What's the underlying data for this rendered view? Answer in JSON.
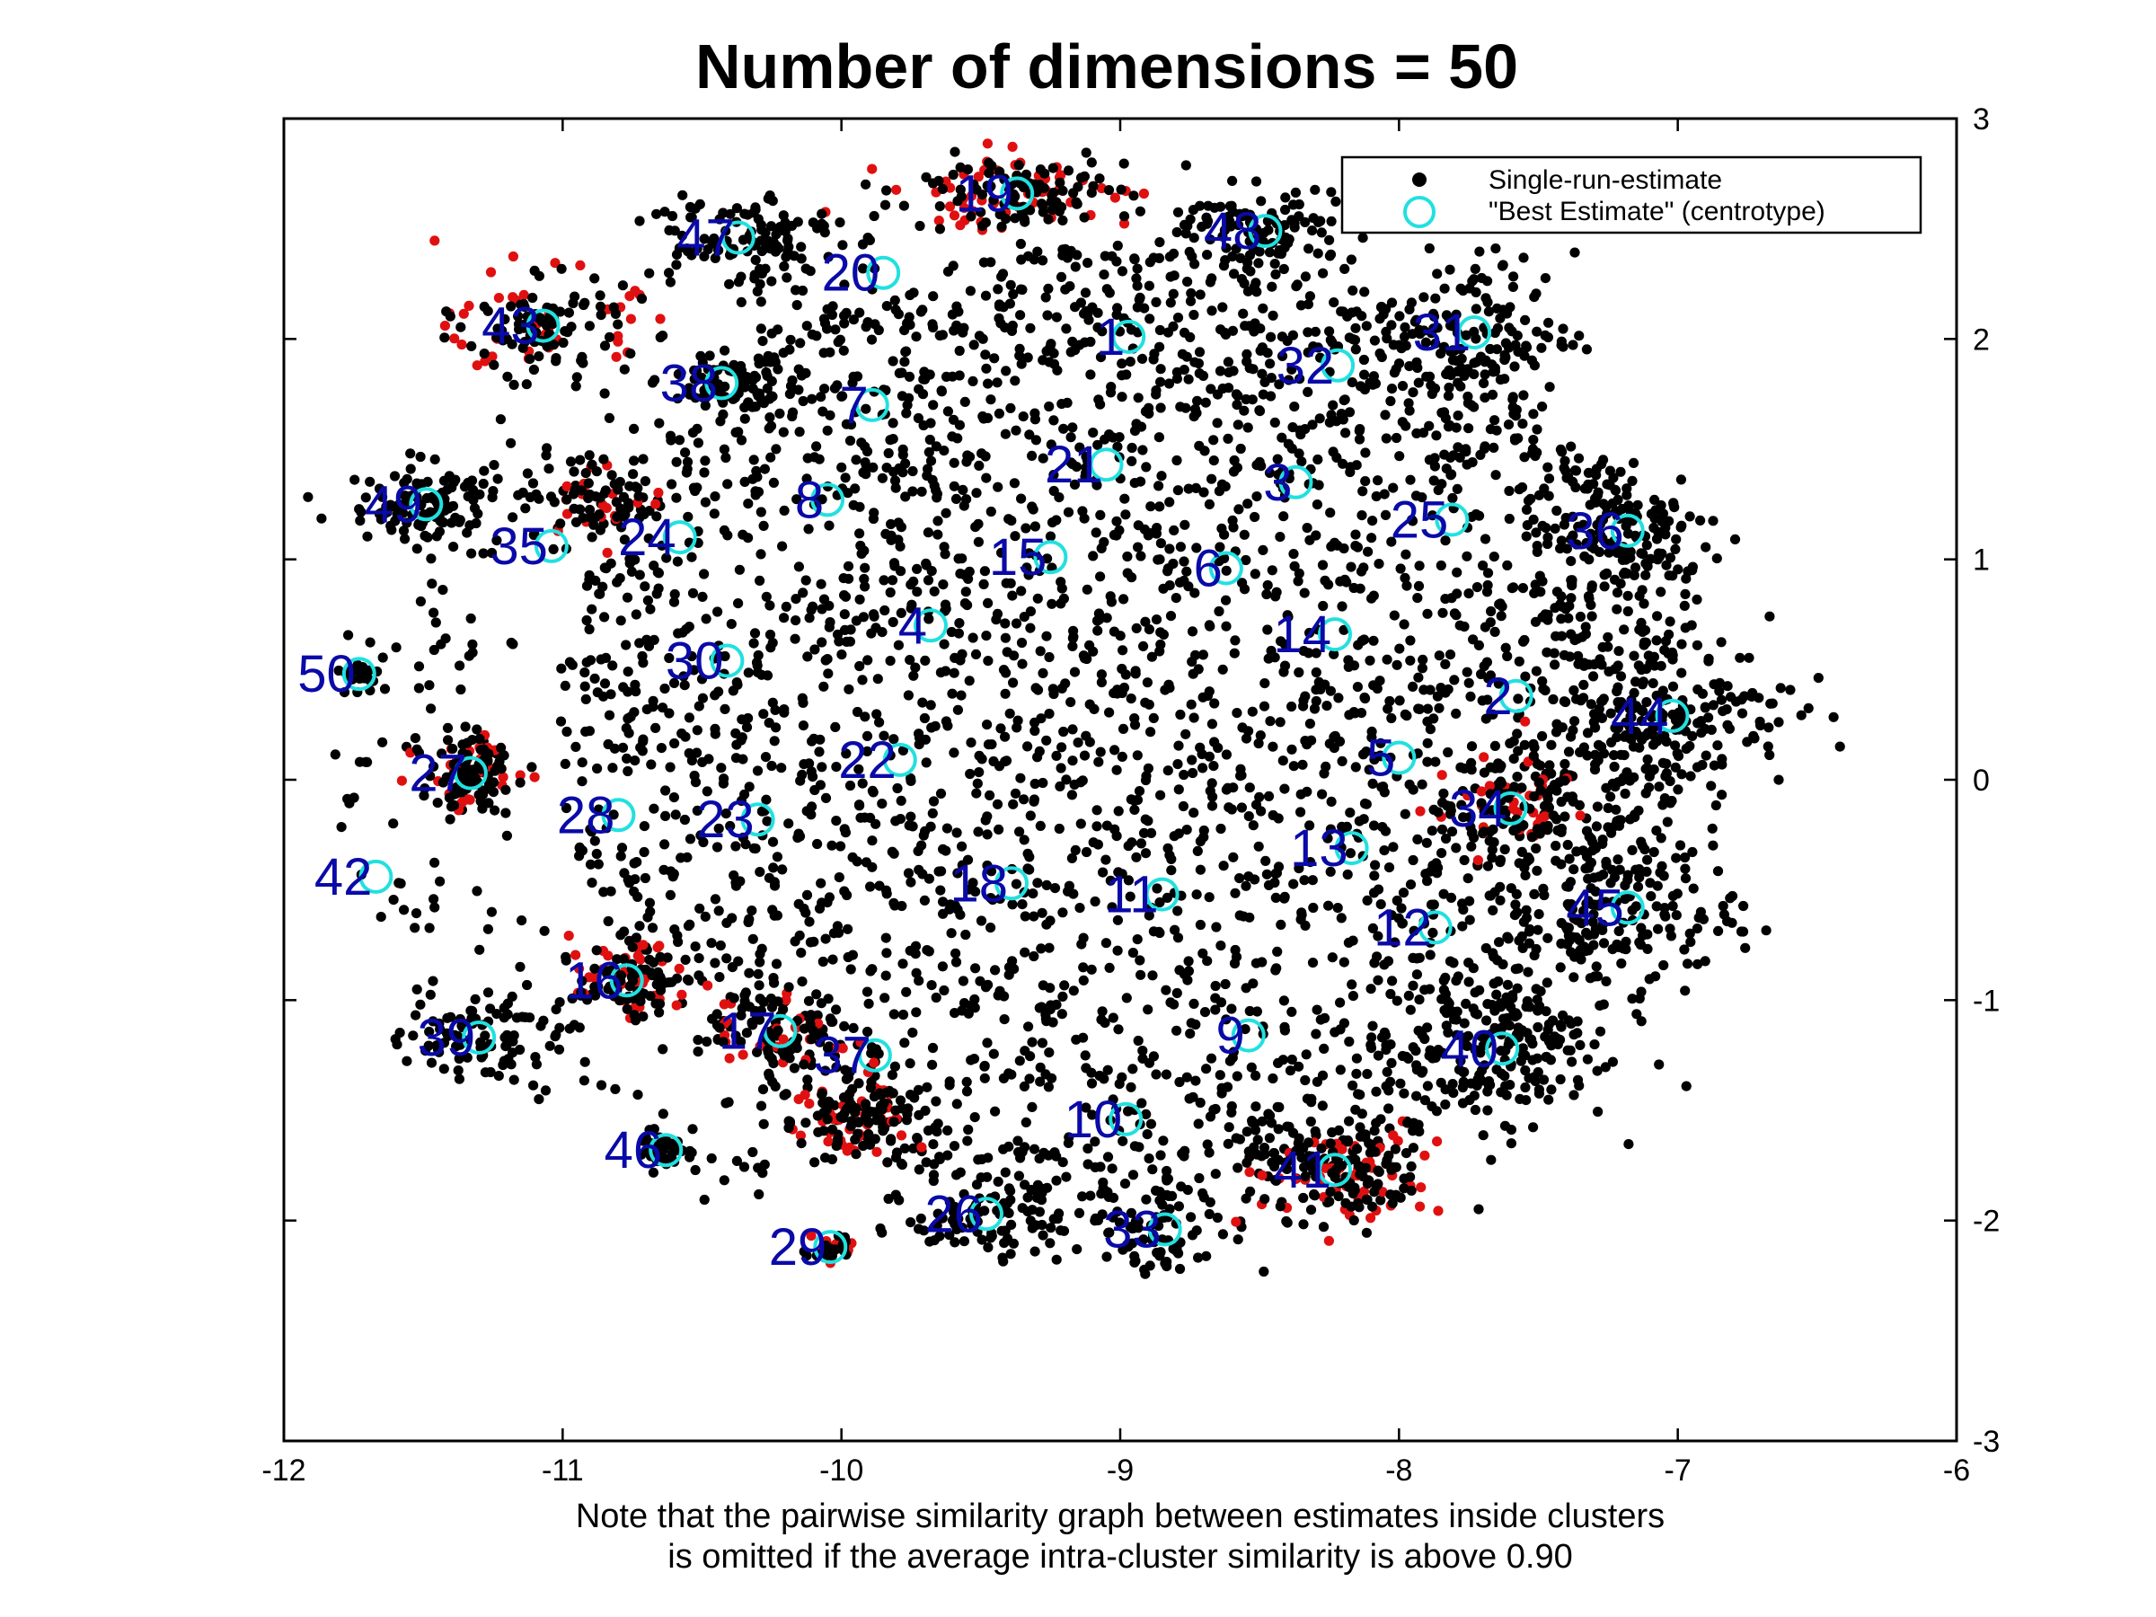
{
  "chart_data": {
    "type": "scatter",
    "title": "Number of dimensions = 50",
    "note_lines": [
      "Note that the pairwise similarity graph between estimates inside clusters",
      "is omitted if the average intra-cluster similarity is above 0.90"
    ],
    "xlim": [
      -12,
      -6
    ],
    "ylim": [
      -3,
      3
    ],
    "x_ticks": [
      -12,
      -11,
      -10,
      -9,
      -8,
      -7,
      -6
    ],
    "y_ticks": [
      -3,
      -2,
      -1,
      0,
      1,
      2,
      3
    ],
    "x_tick_labels": [
      "-12",
      "-11",
      "-10",
      "-9",
      "-8",
      "-7",
      "-6"
    ],
    "y_tick_labels": [
      "-3",
      "-2",
      "-1",
      "0",
      "1",
      "2",
      "3"
    ],
    "y_axis_side": "right",
    "grid": false,
    "legend": {
      "placement": "top-right",
      "entries": [
        "Single-run-estimate",
        "\"Best Estimate\" (centrotype)"
      ]
    },
    "series": [
      {
        "name": "\"Best Estimate\" (centrotype)",
        "color": "#22e0e0",
        "points": [
          {
            "label": "1",
            "x": -8.97,
            "y": 2.01
          },
          {
            "label": "2",
            "x": -7.58,
            "y": 0.38
          },
          {
            "label": "3",
            "x": -8.37,
            "y": 1.35
          },
          {
            "label": "4",
            "x": -9.68,
            "y": 0.7
          },
          {
            "label": "5",
            "x": -8.0,
            "y": 0.1
          },
          {
            "label": "6",
            "x": -8.62,
            "y": 0.96
          },
          {
            "label": "7",
            "x": -9.89,
            "y": 1.7
          },
          {
            "label": "8",
            "x": -10.05,
            "y": 1.27
          },
          {
            "label": "9",
            "x": -8.54,
            "y": -1.16
          },
          {
            "label": "10",
            "x": -8.98,
            "y": -1.54
          },
          {
            "label": "11",
            "x": -8.85,
            "y": -0.52
          },
          {
            "label": "12",
            "x": -7.87,
            "y": -0.67
          },
          {
            "label": "13",
            "x": -8.17,
            "y": -0.31
          },
          {
            "label": "14",
            "x": -8.23,
            "y": 0.66
          },
          {
            "label": "15",
            "x": -9.25,
            "y": 1.01
          },
          {
            "label": "16",
            "x": -10.77,
            "y": -0.91
          },
          {
            "label": "17",
            "x": -10.22,
            "y": -1.14
          },
          {
            "label": "18",
            "x": -9.39,
            "y": -0.47
          },
          {
            "label": "19",
            "x": -9.37,
            "y": 2.66
          },
          {
            "label": "20",
            "x": -9.85,
            "y": 2.3
          },
          {
            "label": "21",
            "x": -9.05,
            "y": 1.43
          },
          {
            "label": "22",
            "x": -9.79,
            "y": 0.09
          },
          {
            "label": "23",
            "x": -10.3,
            "y": -0.18
          },
          {
            "label": "24",
            "x": -10.58,
            "y": 1.1
          },
          {
            "label": "25",
            "x": -7.81,
            "y": 1.18
          },
          {
            "label": "26",
            "x": -9.48,
            "y": -1.97
          },
          {
            "label": "27",
            "x": -11.33,
            "y": 0.03
          },
          {
            "label": "28",
            "x": -10.8,
            "y": -0.16
          },
          {
            "label": "29",
            "x": -10.04,
            "y": -2.12
          },
          {
            "label": "30",
            "x": -10.41,
            "y": 0.54
          },
          {
            "label": "31",
            "x": -7.73,
            "y": 2.03
          },
          {
            "label": "32",
            "x": -8.22,
            "y": 1.88
          },
          {
            "label": "33",
            "x": -8.84,
            "y": -2.04
          },
          {
            "label": "34",
            "x": -7.6,
            "y": -0.13
          },
          {
            "label": "35",
            "x": -11.04,
            "y": 1.06
          },
          {
            "label": "36",
            "x": -7.18,
            "y": 1.13
          },
          {
            "label": "37",
            "x": -9.88,
            "y": -1.25
          },
          {
            "label": "38",
            "x": -10.43,
            "y": 1.8
          },
          {
            "label": "39",
            "x": -11.3,
            "y": -1.17
          },
          {
            "label": "40",
            "x": -7.63,
            "y": -1.22
          },
          {
            "label": "41",
            "x": -8.23,
            "y": -1.77
          },
          {
            "label": "42",
            "x": -11.67,
            "y": -0.44
          },
          {
            "label": "43",
            "x": -11.07,
            "y": 2.06
          },
          {
            "label": "44",
            "x": -7.02,
            "y": 0.29
          },
          {
            "label": "45",
            "x": -7.18,
            "y": -0.58
          },
          {
            "label": "46",
            "x": -10.63,
            "y": -1.68
          },
          {
            "label": "47",
            "x": -10.37,
            "y": 2.46
          },
          {
            "label": "48",
            "x": -8.48,
            "y": 2.49
          },
          {
            "label": "49",
            "x": -11.49,
            "y": 1.25
          },
          {
            "label": "50",
            "x": -11.73,
            "y": 0.48
          }
        ]
      },
      {
        "name": "Single-run-estimate",
        "color": "#000000",
        "highlight_color": "#e01010",
        "clusters": [
          {
            "x": -9.37,
            "y": 2.66,
            "sx": 0.2,
            "sy": 0.08,
            "n": 110,
            "red": true
          },
          {
            "x": -10.37,
            "y": 2.46,
            "sx": 0.18,
            "sy": 0.12,
            "n": 120,
            "red": false
          },
          {
            "x": -8.48,
            "y": 2.49,
            "sx": 0.18,
            "sy": 0.1,
            "n": 110,
            "red": false
          },
          {
            "x": -11.07,
            "y": 2.06,
            "sx": 0.15,
            "sy": 0.11,
            "n": 90,
            "red": true
          },
          {
            "x": -10.43,
            "y": 1.8,
            "sx": 0.1,
            "sy": 0.07,
            "n": 60,
            "red": false
          },
          {
            "x": -11.49,
            "y": 1.25,
            "sx": 0.14,
            "sy": 0.09,
            "n": 110,
            "red": false
          },
          {
            "x": -11.73,
            "y": 0.48,
            "sx": 0.04,
            "sy": 0.03,
            "n": 25,
            "red": false
          },
          {
            "x": -11.33,
            "y": 0.03,
            "sx": 0.08,
            "sy": 0.08,
            "n": 80,
            "red": true
          },
          {
            "x": -10.77,
            "y": -0.91,
            "sx": 0.09,
            "sy": 0.08,
            "n": 70,
            "red": true
          },
          {
            "x": -11.3,
            "y": -1.17,
            "sx": 0.13,
            "sy": 0.09,
            "n": 80,
            "red": false
          },
          {
            "x": -10.63,
            "y": -1.68,
            "sx": 0.05,
            "sy": 0.04,
            "n": 40,
            "red": false
          },
          {
            "x": -10.04,
            "y": -2.12,
            "sx": 0.04,
            "sy": 0.03,
            "n": 20,
            "red": true
          },
          {
            "x": -9.48,
            "y": -1.97,
            "sx": 0.14,
            "sy": 0.1,
            "n": 80,
            "red": false
          },
          {
            "x": -8.84,
            "y": -2.04,
            "sx": 0.15,
            "sy": 0.11,
            "n": 80,
            "red": false
          },
          {
            "x": -8.2,
            "y": -1.8,
            "sx": 0.16,
            "sy": 0.11,
            "n": 110,
            "red": true
          },
          {
            "x": -9.95,
            "y": -1.55,
            "sx": 0.1,
            "sy": 0.1,
            "n": 80,
            "red": true
          },
          {
            "x": -7.73,
            "y": 2.03,
            "sx": 0.18,
            "sy": 0.18,
            "n": 140,
            "red": false
          },
          {
            "x": -7.18,
            "y": 1.13,
            "sx": 0.18,
            "sy": 0.18,
            "n": 130,
            "red": false
          },
          {
            "x": -7.02,
            "y": 0.29,
            "sx": 0.22,
            "sy": 0.17,
            "n": 150,
            "red": false
          },
          {
            "x": -7.18,
            "y": -0.58,
            "sx": 0.2,
            "sy": 0.17,
            "n": 130,
            "red": false
          },
          {
            "x": -7.63,
            "y": -1.22,
            "sx": 0.2,
            "sy": 0.17,
            "n": 140,
            "red": false
          },
          {
            "x": -7.6,
            "y": -0.13,
            "sx": 0.13,
            "sy": 0.1,
            "n": 70,
            "red": true
          },
          {
            "x": -10.22,
            "y": -1.14,
            "sx": 0.12,
            "sy": 0.1,
            "n": 60,
            "red": true
          },
          {
            "x": -10.85,
            "y": 1.3,
            "sx": 0.1,
            "sy": 0.08,
            "n": 45,
            "red": true
          }
        ],
        "bulk": {
          "cx": -9.0,
          "cy": 0.25,
          "rx": 2.02,
          "ry": 2.18,
          "n": 3000
        },
        "outskirts": {
          "cx": -9.3,
          "cy": 0.1,
          "rx": 2.55,
          "ry": 2.3,
          "n": 500
        }
      }
    ]
  }
}
